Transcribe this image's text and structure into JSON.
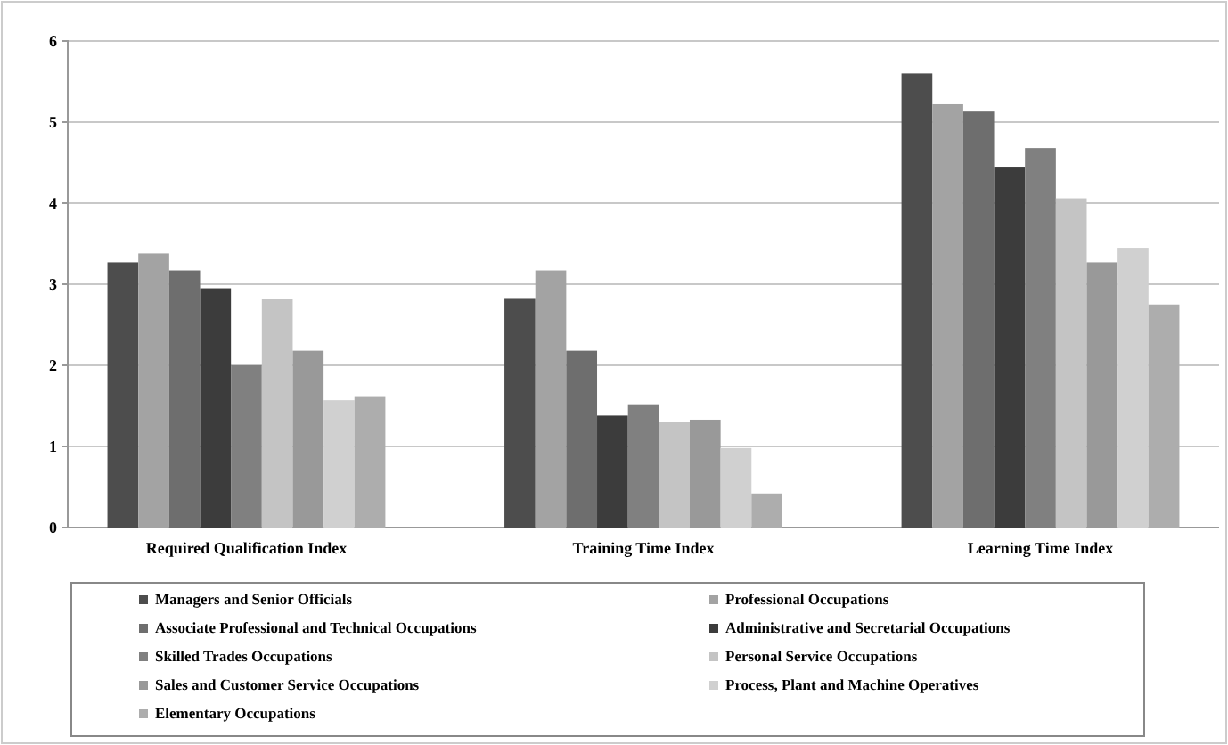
{
  "chart_data": {
    "type": "bar",
    "categories": [
      "Required Qualification Index",
      "Training Time Index",
      "Learning Time Index"
    ],
    "series": [
      {
        "name": "Managers and Senior Officials",
        "color": "#4d4d4d",
        "values": [
          3.27,
          2.83,
          5.6
        ]
      },
      {
        "name": "Professional Occupations",
        "color": "#a3a3a3",
        "values": [
          3.38,
          3.17,
          5.22
        ]
      },
      {
        "name": "Associate Professional and Technical Occupations",
        "color": "#6e6e6e",
        "values": [
          3.17,
          2.18,
          5.13
        ]
      },
      {
        "name": "Administrative and Secretarial Occupations",
        "color": "#3c3c3c",
        "values": [
          2.95,
          1.38,
          4.45
        ]
      },
      {
        "name": "Skilled Trades Occupations",
        "color": "#808080",
        "values": [
          2.0,
          1.52,
          4.68
        ]
      },
      {
        "name": "Personal Service Occupations",
        "color": "#c4c4c4",
        "values": [
          2.82,
          1.3,
          4.06
        ]
      },
      {
        "name": "Sales and Customer Service Occupations",
        "color": "#999999",
        "values": [
          2.18,
          1.33,
          3.27
        ]
      },
      {
        "name": "Process, Plant and Machine Operatives",
        "color": "#d0d0d0",
        "values": [
          1.57,
          0.98,
          3.45
        ]
      },
      {
        "name": "Elementary Occupations",
        "color": "#adadad",
        "values": [
          1.62,
          0.42,
          2.75
        ]
      }
    ],
    "ylim": [
      0,
      6
    ],
    "yticks": [
      0,
      1,
      2,
      3,
      4,
      5,
      6
    ],
    "grid": "y",
    "legend": "bottom"
  }
}
